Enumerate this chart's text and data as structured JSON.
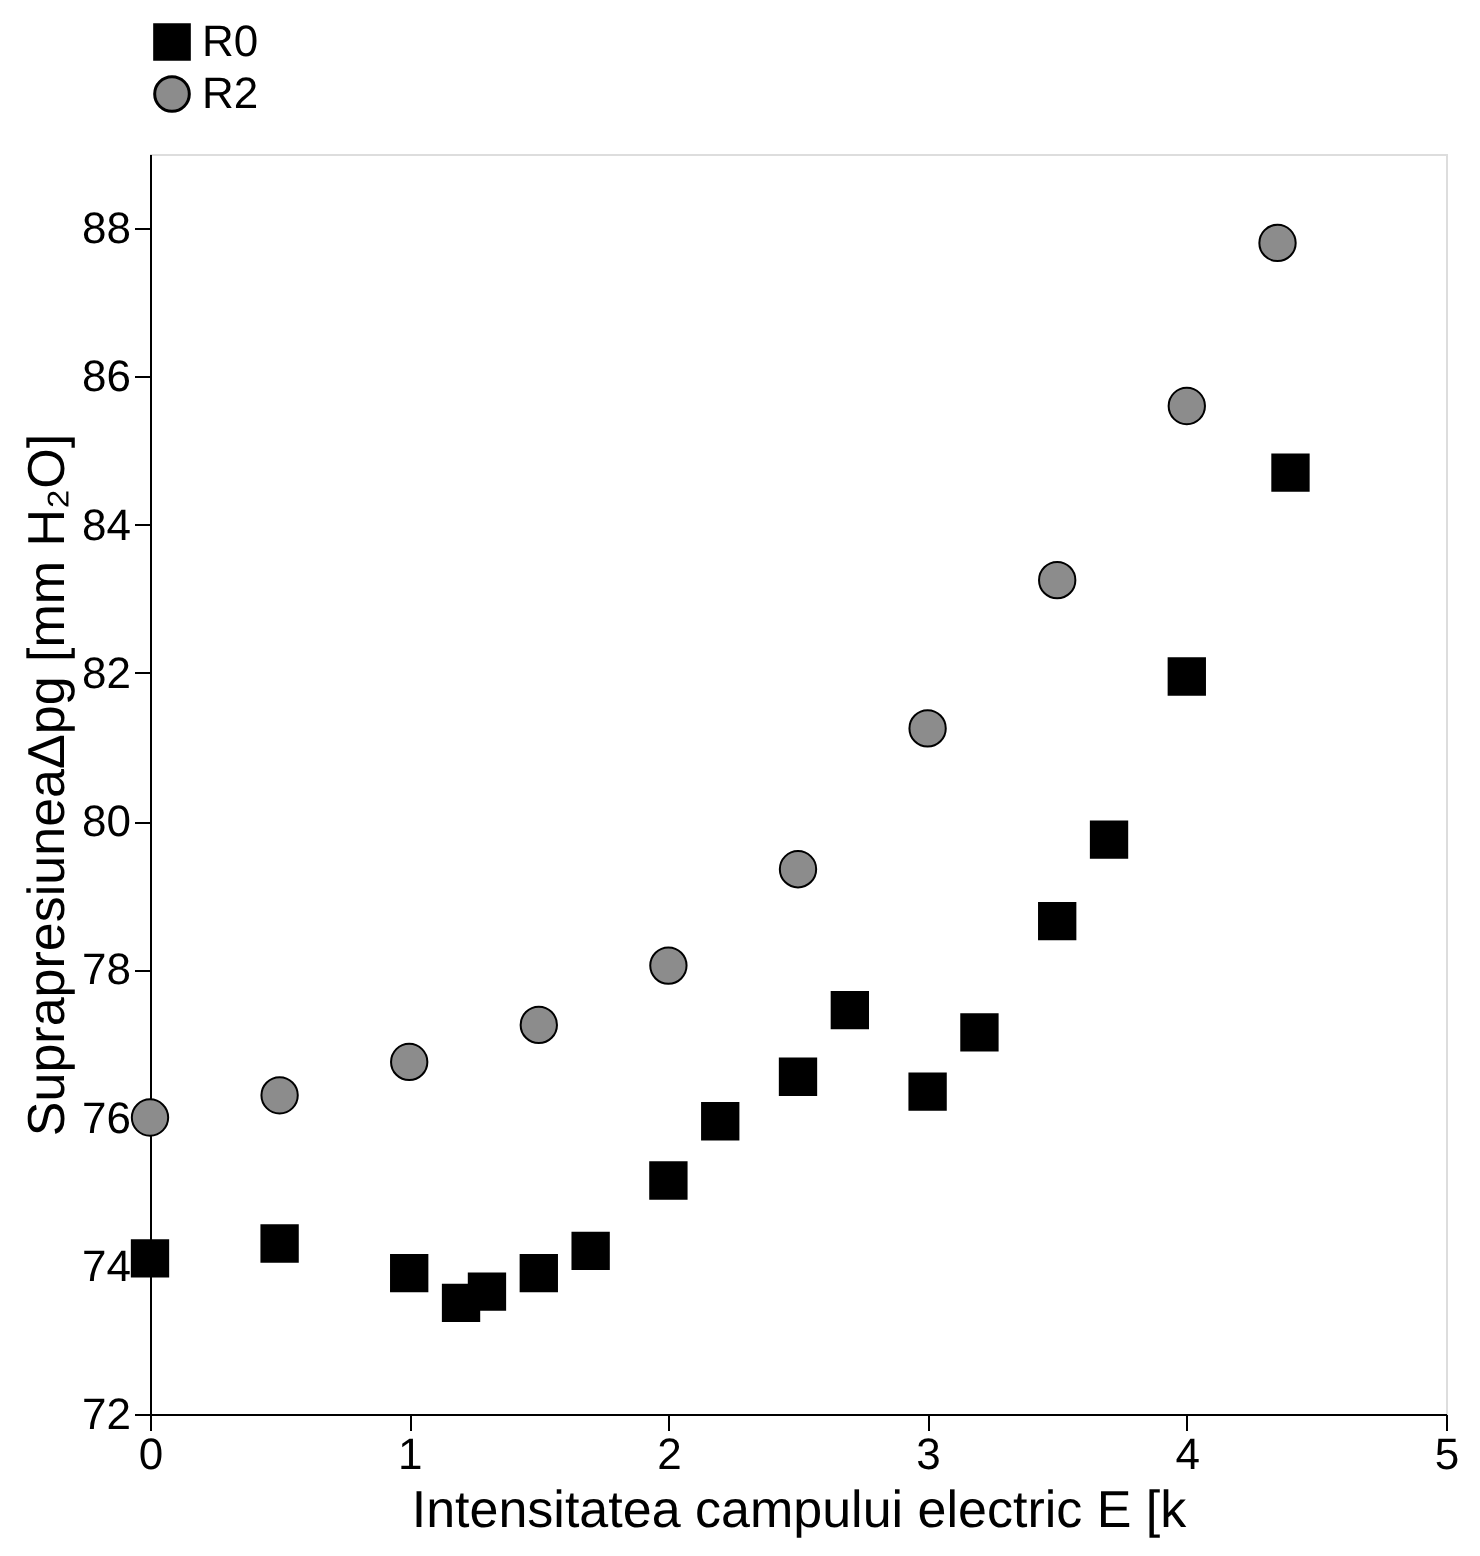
{
  "chart_data": {
    "type": "scatter",
    "xlabel": "Intensitatea campului electric E [k",
    "ylabel": "SuprapresiuneaΔpg [mm H₂O]",
    "xlim": [
      0,
      5
    ],
    "xticks": [
      0,
      1,
      2,
      3,
      4,
      5
    ],
    "ylim": [
      72,
      89
    ],
    "yticks": [
      72,
      74,
      76,
      78,
      80,
      82,
      84,
      86,
      88
    ],
    "grid": false,
    "legend": "top",
    "series": [
      {
        "name": "R0",
        "color": "#000000",
        "marker": "square",
        "x": [
          0,
          0.5,
          1,
          1.2,
          1.3,
          1.5,
          1.7,
          2,
          2.2,
          2.5,
          2.7,
          3,
          3.2,
          3.5,
          3.7,
          4,
          4.4
        ],
        "values": [
          74.1,
          74.3,
          73.9,
          73.5,
          73.65,
          73.9,
          74.2,
          75.15,
          75.95,
          76.55,
          77.45,
          76.35,
          77.15,
          78.65,
          79.75,
          81.95,
          84.7
        ]
      },
      {
        "name": "R2",
        "color": "#8c8c8c",
        "marker": "circle",
        "x": [
          0,
          0.5,
          1,
          1.5,
          2,
          2.5,
          3,
          3.5,
          4,
          4.35
        ],
        "values": [
          76.0,
          76.3,
          76.75,
          77.25,
          78.05,
          79.35,
          81.25,
          83.25,
          85.6,
          87.8
        ]
      }
    ]
  }
}
